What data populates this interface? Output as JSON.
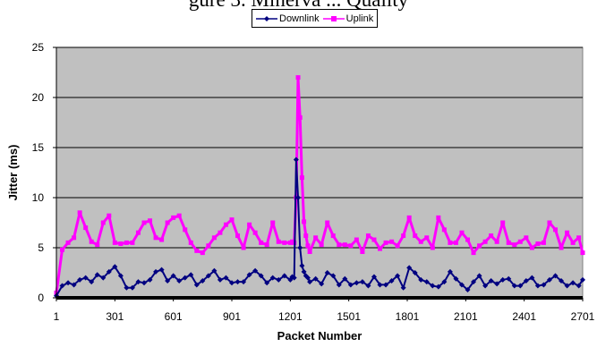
{
  "chart_data": {
    "type": "line",
    "title": "gure 3. Minerva ... Quality",
    "xlabel": "Packet Number",
    "ylabel": "Jitter (ms)",
    "xlim": [
      1,
      2701
    ],
    "ylim": [
      0,
      25
    ],
    "x_ticks": [
      "1",
      "301",
      "601",
      "901",
      "1201",
      "1501",
      "1801",
      "2101",
      "2401",
      "2701"
    ],
    "y_ticks": [
      "0",
      "5",
      "10",
      "15",
      "20",
      "25"
    ],
    "grid": true,
    "legend_position": "top-center",
    "plot_background": "#c0c0c0",
    "x": [
      1,
      31,
      61,
      91,
      121,
      151,
      181,
      211,
      241,
      271,
      301,
      331,
      361,
      391,
      421,
      451,
      481,
      511,
      541,
      571,
      601,
      631,
      661,
      691,
      721,
      751,
      781,
      811,
      841,
      871,
      901,
      931,
      961,
      991,
      1021,
      1051,
      1081,
      1111,
      1141,
      1171,
      1201,
      1211,
      1221,
      1231,
      1241,
      1251,
      1261,
      1271,
      1281,
      1291,
      1301,
      1331,
      1361,
      1391,
      1421,
      1451,
      1481,
      1511,
      1541,
      1571,
      1601,
      1631,
      1661,
      1691,
      1721,
      1751,
      1781,
      1811,
      1841,
      1871,
      1901,
      1931,
      1961,
      1991,
      2021,
      2051,
      2081,
      2111,
      2141,
      2171,
      2201,
      2231,
      2261,
      2291,
      2321,
      2351,
      2381,
      2411,
      2441,
      2471,
      2501,
      2531,
      2561,
      2591,
      2621,
      2651,
      2681,
      2701
    ],
    "series": [
      {
        "name": "Downlink",
        "color": "#000080",
        "marker": "diamond",
        "values": [
          0.2,
          1.2,
          1.5,
          1.3,
          1.8,
          2.0,
          1.6,
          2.3,
          2.0,
          2.6,
          3.1,
          2.2,
          1.0,
          1.0,
          1.6,
          1.5,
          1.8,
          2.6,
          2.8,
          1.7,
          2.2,
          1.7,
          2.0,
          2.3,
          1.3,
          1.7,
          2.2,
          2.7,
          1.8,
          2.0,
          1.5,
          1.6,
          1.6,
          2.3,
          2.7,
          2.2,
          1.5,
          2.0,
          1.8,
          2.2,
          1.8,
          2.1,
          2.0,
          13.8,
          10.0,
          5.0,
          3.2,
          2.6,
          2.2,
          2.0,
          1.6,
          1.9,
          1.4,
          2.5,
          2.2,
          1.3,
          1.9,
          1.3,
          1.5,
          1.6,
          1.2,
          2.1,
          1.3,
          1.3,
          1.7,
          2.2,
          1.0,
          3.0,
          2.5,
          1.8,
          1.6,
          1.2,
          1.1,
          1.6,
          2.6,
          1.9,
          1.3,
          0.8,
          1.6,
          2.2,
          1.2,
          1.7,
          1.4,
          1.8,
          1.9,
          1.2,
          1.2,
          1.7,
          2.0,
          1.2,
          1.3,
          1.8,
          2.2,
          1.7,
          1.2,
          1.5,
          1.2,
          1.8
        ]
      },
      {
        "name": "Uplink",
        "color": "#ff00ff",
        "marker": "square",
        "values": [
          0.5,
          4.8,
          5.5,
          6.0,
          8.5,
          7.0,
          5.6,
          5.3,
          7.5,
          8.2,
          5.5,
          5.4,
          5.5,
          5.5,
          6.5,
          7.5,
          7.7,
          6.0,
          5.8,
          7.5,
          8.0,
          8.2,
          6.8,
          5.5,
          4.7,
          4.5,
          5.2,
          6.0,
          6.5,
          7.3,
          7.8,
          6.2,
          5.0,
          7.3,
          6.5,
          5.5,
          5.3,
          7.5,
          5.6,
          5.5,
          5.5,
          5.6,
          5.5,
          10.0,
          22.0,
          18.0,
          12.0,
          7.6,
          6.2,
          5.2,
          4.6,
          6.0,
          5.3,
          7.5,
          6.2,
          5.3,
          5.3,
          5.2,
          5.8,
          4.6,
          6.2,
          5.8,
          4.9,
          5.5,
          5.6,
          5.2,
          6.2,
          8.0,
          6.2,
          5.6,
          6.0,
          5.0,
          8.0,
          6.8,
          5.5,
          5.5,
          6.5,
          5.8,
          4.5,
          5.2,
          5.6,
          6.2,
          5.6,
          7.5,
          5.5,
          5.3,
          5.6,
          6.0,
          5.0,
          5.4,
          5.5,
          7.5,
          6.8,
          5.0,
          6.5,
          5.5,
          6.0,
          4.5
        ]
      }
    ]
  }
}
